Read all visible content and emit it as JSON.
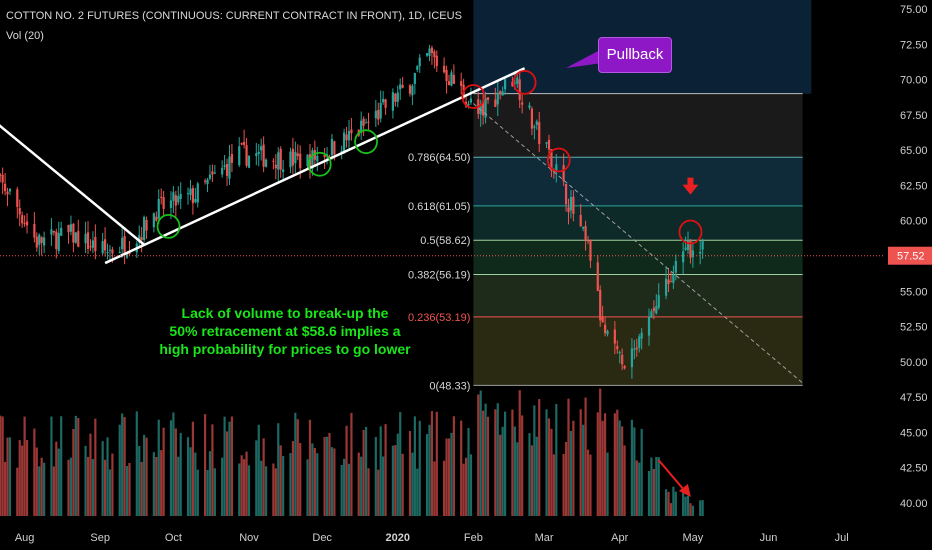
{
  "header": {
    "title": "COTTON NO. 2 FUTURES (CONTINUOUS: CURRENT CONTRACT IN FRONT), 1D, ICEUS",
    "volume_label": "Vol (20)"
  },
  "annotations": {
    "callout": "Pullback",
    "note_lines": [
      "Lack of volume to break-up the",
      "50% retracement at $58.6 implies a",
      "high probability for prices to go lower"
    ]
  },
  "colors": {
    "up": "#26a69a",
    "down": "#ef5350",
    "callout": "#8e18c6",
    "note": "#19e619",
    "price_line": "#ef5350"
  },
  "chart_data": {
    "type": "candlestick",
    "x_ticks": [
      "Aug",
      "Sep",
      "Oct",
      "Nov",
      "Dec",
      "2020",
      "Feb",
      "Mar",
      "Apr",
      "May",
      "Jun",
      "Jul"
    ],
    "y_ticks": [
      40.0,
      42.5,
      45.0,
      47.5,
      50.0,
      52.5,
      55.0,
      57.5,
      60.0,
      62.5,
      65.0,
      67.5,
      70.0,
      72.5,
      75.0
    ],
    "y_range": [
      39.5,
      75.5
    ],
    "last_price": 57.52,
    "last_price_label": "57.52",
    "close_path": [
      {
        "date": "2019-07-15",
        "close": 63.2
      },
      {
        "date": "2019-07-25",
        "close": 62.2
      },
      {
        "date": "2019-08-06",
        "close": 58.5
      },
      {
        "date": "2019-08-20",
        "close": 59.0
      },
      {
        "date": "2019-09-03",
        "close": 57.8
      },
      {
        "date": "2019-09-15",
        "close": 58.6
      },
      {
        "date": "2019-09-24",
        "close": 60.8
      },
      {
        "date": "2019-10-10",
        "close": 61.8
      },
      {
        "date": "2019-10-28",
        "close": 64.7
      },
      {
        "date": "2019-11-25",
        "close": 64.2
      },
      {
        "date": "2019-12-15",
        "close": 66.2
      },
      {
        "date": "2020-01-05",
        "close": 69.5
      },
      {
        "date": "2020-01-14",
        "close": 71.8
      },
      {
        "date": "2020-01-28",
        "close": 69.0
      },
      {
        "date": "2020-02-03",
        "close": 67.5
      },
      {
        "date": "2020-02-18",
        "close": 70.3
      },
      {
        "date": "2020-02-25",
        "close": 67.0
      },
      {
        "date": "2020-03-05",
        "close": 64.0
      },
      {
        "date": "2020-03-20",
        "close": 57.5
      },
      {
        "date": "2020-03-25",
        "close": 52.3
      },
      {
        "date": "2020-04-03",
        "close": 49.3
      },
      {
        "date": "2020-04-10",
        "close": 51.5
      },
      {
        "date": "2020-04-17",
        "close": 54.5
      },
      {
        "date": "2020-04-24",
        "close": 56.5
      },
      {
        "date": "2020-05-01",
        "close": 58.4
      },
      {
        "date": "2020-05-05",
        "close": 57.8
      }
    ],
    "fibonacci": [
      {
        "ratio": 0.786,
        "price": 64.5,
        "label": "0.786(64.50)"
      },
      {
        "ratio": 0.618,
        "price": 61.05,
        "label": "0.618(61.05)"
      },
      {
        "ratio": 0.5,
        "price": 58.62,
        "label": "0.5(58.62)"
      },
      {
        "ratio": 0.382,
        "price": 56.19,
        "label": "0.382(56.19)"
      },
      {
        "ratio": 0.236,
        "price": 53.19,
        "label": "0.236(53.19)"
      },
      {
        "ratio": 0,
        "price": 48.33,
        "label": "0(48.33)"
      }
    ],
    "fib_top_price": 69.0,
    "fib_start": "2020-02-01",
    "fib_end": "2020-06-15",
    "trendlines": [
      {
        "name": "downtrend",
        "from": {
          "date": "2019-07-15",
          "close": 67.7
        },
        "to": {
          "date": "2019-09-19",
          "close": 58.3
        }
      },
      {
        "name": "uptrend",
        "from": {
          "date": "2019-09-03",
          "close": 57.0
        },
        "to": {
          "date": "2020-02-22",
          "close": 70.8
        }
      }
    ],
    "dashed_projection": {
      "from": {
        "date": "2020-02-01",
        "close": 68.3
      },
      "to": {
        "date": "2020-06-15",
        "close": 48.5
      }
    },
    "circles": [
      {
        "date": "2019-09-29",
        "close": 59.6,
        "color": "#18c118"
      },
      {
        "date": "2019-11-30",
        "close": 64.0,
        "color": "#18c118"
      },
      {
        "date": "2019-12-19",
        "close": 65.6,
        "color": "#18c118"
      },
      {
        "date": "2020-02-01",
        "close": 68.8,
        "color": "#e01010"
      },
      {
        "date": "2020-02-22",
        "close": 69.8,
        "color": "#e01010"
      },
      {
        "date": "2020-03-07",
        "close": 64.3,
        "color": "#e01010"
      },
      {
        "date": "2020-04-30",
        "close": 59.2,
        "color": "#e01010"
      }
    ],
    "volume_trend_arrow": {
      "from": "2020-04-21",
      "to": "2020-05-01"
    },
    "price_arrow": {
      "date": "2020-04-30",
      "close": 62.2
    }
  }
}
